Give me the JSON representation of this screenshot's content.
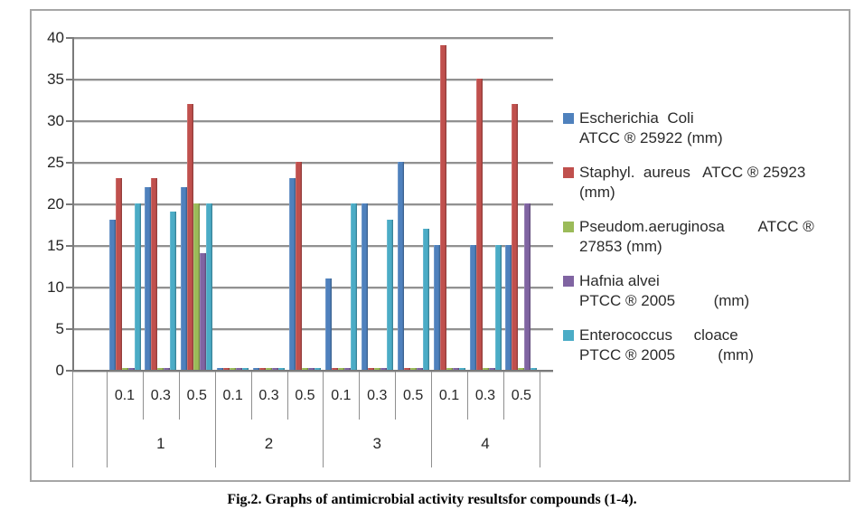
{
  "figure": {
    "caption": "Fig.2. Graphs of antimicrobial activity resultsfor compounds (1-4)."
  },
  "chart_data": {
    "type": "bar",
    "title": "",
    "xlabel": "",
    "ylabel": "",
    "ylim": [
      0,
      40
    ],
    "yticks": [
      0,
      5,
      10,
      15,
      20,
      25,
      30,
      35,
      40
    ],
    "grid": true,
    "legend_position": "right",
    "x_axis": {
      "compounds": [
        "1",
        "2",
        "3",
        "4"
      ],
      "concentrations": [
        "0.1",
        "0.3",
        "0.5"
      ]
    },
    "series": [
      {
        "name": "Escherichia Coli ATCC ® 25922 (mm)",
        "legend_lines": [
          "Escherichia  Coli",
          "ATCC ® 25922 (mm)"
        ],
        "color": "#4F81BD",
        "values": [
          18,
          22,
          22,
          0,
          0,
          23,
          11,
          20,
          25,
          15,
          15,
          15
        ]
      },
      {
        "name": "Staphyl. aureus ATCC ® 25923 (mm)",
        "legend_lines": [
          "Staphyl.  aureus   ATCC ® 25923",
          "(mm)"
        ],
        "color": "#C0504D",
        "values": [
          23,
          23,
          32,
          0,
          0,
          25,
          0,
          0,
          0,
          39,
          35,
          32
        ]
      },
      {
        "name": "Pseudom.aeruginosa ATCC ® 27853 (mm)",
        "legend_lines": [
          "Pseudom.aeruginosa        ATCC ®",
          "27853 (mm)"
        ],
        "color": "#9BBB59",
        "values": [
          0,
          0,
          20,
          0,
          0,
          0,
          0,
          0,
          0,
          0,
          0,
          0
        ]
      },
      {
        "name": "Hafnia alvei PTCC ® 2005 (mm)",
        "legend_lines": [
          "Hafnia alvei",
          "PTCC ® 2005         (mm)"
        ],
        "color": "#8064A2",
        "values": [
          0,
          0,
          14,
          0,
          0,
          0,
          0,
          0,
          0,
          0,
          0,
          20
        ]
      },
      {
        "name": "Enterococcus cloace PTCC ® 2005 (mm)",
        "legend_lines": [
          "Enterococcus     cloace",
          "PTCC ® 2005          (mm)"
        ],
        "color": "#4BACC6",
        "values": [
          20,
          19,
          20,
          0,
          0,
          0,
          20,
          18,
          17,
          0,
          15,
          0
        ]
      }
    ]
  }
}
